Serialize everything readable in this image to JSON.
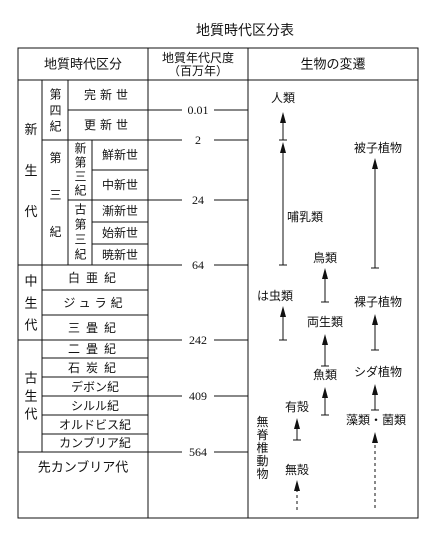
{
  "title": "地質時代区分表",
  "header": {
    "division": "地質時代区分",
    "scale": "地質年代尺度",
    "scale_unit": "（百万年）",
    "life": "生物の変遷"
  },
  "eras": {
    "cenozoic": "新生代",
    "mesozoic": "中生代",
    "paleozoic": "古生代",
    "precambrian": "先カンブリア代"
  },
  "periods": {
    "quaternary": "第四紀",
    "tertiary": "第三紀",
    "neogene": "新第三紀",
    "paleogene": "古第三紀",
    "cretaceous": "白亜紀",
    "jurassic": "ジュラ紀",
    "triassic": "三畳紀",
    "permian": "二畳紀",
    "carboniferous": "石炭紀",
    "devonian": "デボン紀",
    "silurian": "シルル紀",
    "ordovician": "オルドビス紀",
    "cambrian": "カンブリア紀"
  },
  "epochs": {
    "holocene": "完新世",
    "pleistocene": "更新世",
    "pliocene": "鮮新世",
    "miocene": "中新世",
    "oligocene": "漸新世",
    "eocene": "始新世",
    "paleocene": "暁新世"
  },
  "scale_ticks": [
    0.01,
    2,
    24,
    64,
    242,
    409,
    564
  ],
  "life": {
    "human": "人類",
    "angiosperm": "被子植物",
    "mammal": "哺乳類",
    "bird": "鳥類",
    "reptile": "は虫類",
    "gymnosperm": "裸子植物",
    "amphibian": "両生類",
    "fish": "魚類",
    "fern": "シダ植物",
    "shelled": "有殻",
    "algae": "藻類・菌類",
    "invertebrate": "無脊椎動物",
    "unshelled": "無殻"
  }
}
